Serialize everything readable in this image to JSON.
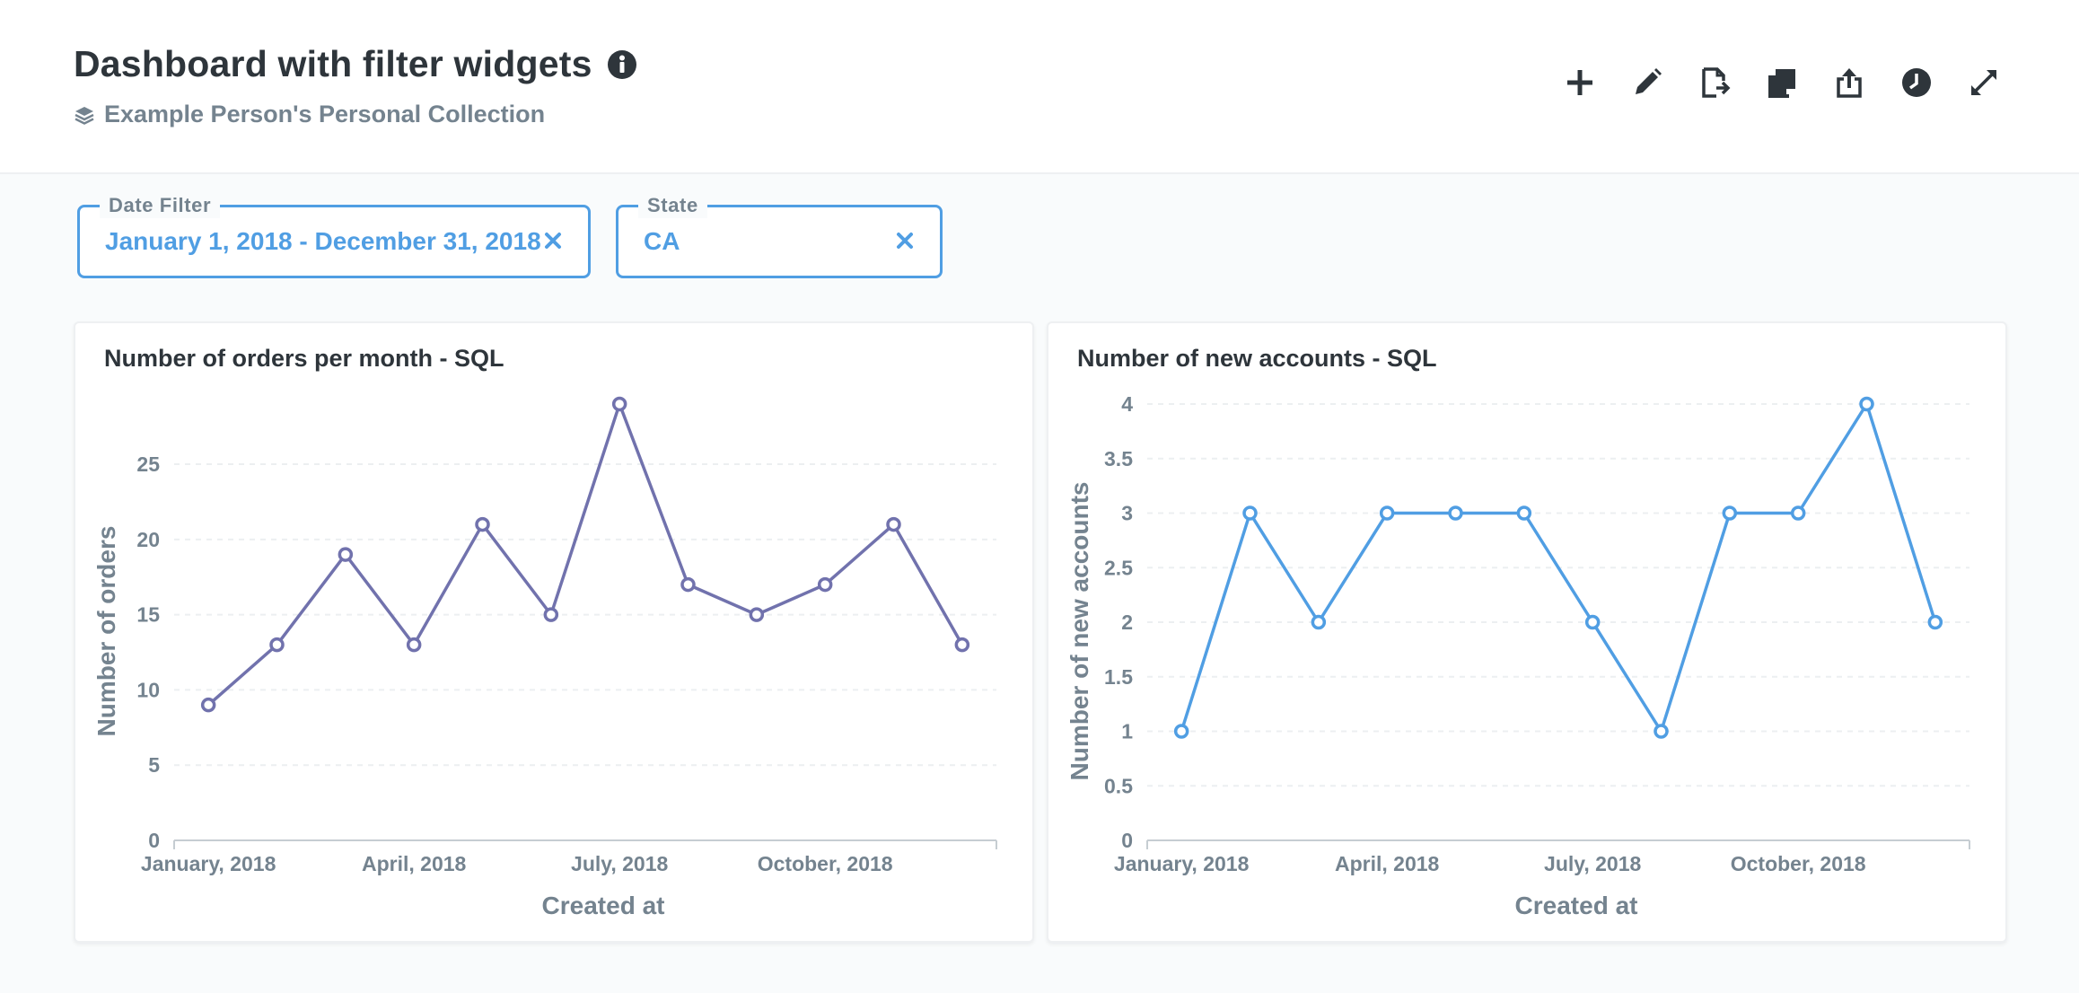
{
  "header": {
    "title": "Dashboard with filter widgets",
    "collection": "Example Person's Personal Collection",
    "toolbar": [
      {
        "name": "add-icon"
      },
      {
        "name": "pencil-icon"
      },
      {
        "name": "document-move-icon"
      },
      {
        "name": "duplicate-icon"
      },
      {
        "name": "share-icon"
      },
      {
        "name": "clock-icon"
      },
      {
        "name": "fullscreen-icon"
      }
    ]
  },
  "filters": [
    {
      "label": "Date Filter",
      "value": "January 1, 2018 - December 31, 2018"
    },
    {
      "label": "State",
      "value": "CA"
    }
  ],
  "colors": {
    "accent": "#509ee3",
    "orders_line": "#7172ad",
    "accounts_line": "#509ee3",
    "muted_text": "#74838f"
  },
  "chart_data": [
    {
      "type": "line",
      "title": "Number of orders per month - SQL",
      "xlabel": "Created at",
      "ylabel": "Number of orders",
      "x": [
        "2018-01",
        "2018-02",
        "2018-03",
        "2018-04",
        "2018-05",
        "2018-06",
        "2018-07",
        "2018-08",
        "2018-09",
        "2018-10",
        "2018-11",
        "2018-12"
      ],
      "x_tick_labels": [
        "January, 2018",
        "April, 2018",
        "July, 2018",
        "October, 2018"
      ],
      "x_tick_index": [
        0,
        3,
        6,
        9
      ],
      "values": [
        9,
        13,
        19,
        13,
        21,
        15,
        29,
        17,
        15,
        17,
        21,
        13
      ],
      "y_ticks": [
        0,
        5,
        10,
        15,
        20,
        25
      ],
      "ylim": [
        0,
        29
      ],
      "grid": true
    },
    {
      "type": "line",
      "title": "Number of new accounts - SQL",
      "xlabel": "Created at",
      "ylabel": "Number of new accounts",
      "x": [
        "2018-01",
        "2018-02",
        "2018-03",
        "2018-04",
        "2018-05",
        "2018-06",
        "2018-07",
        "2018-08",
        "2018-09",
        "2018-10",
        "2018-11",
        "2018-12"
      ],
      "x_tick_labels": [
        "January, 2018",
        "April, 2018",
        "July, 2018",
        "October, 2018"
      ],
      "x_tick_index": [
        0,
        3,
        6,
        9
      ],
      "values": [
        1,
        3,
        2,
        3,
        3,
        3,
        2,
        1,
        3,
        3,
        4,
        2
      ],
      "y_ticks": [
        0,
        0.5,
        1,
        1.5,
        2,
        2.5,
        3,
        3.5,
        4
      ],
      "ylim": [
        0,
        4
      ],
      "grid": true
    }
  ]
}
